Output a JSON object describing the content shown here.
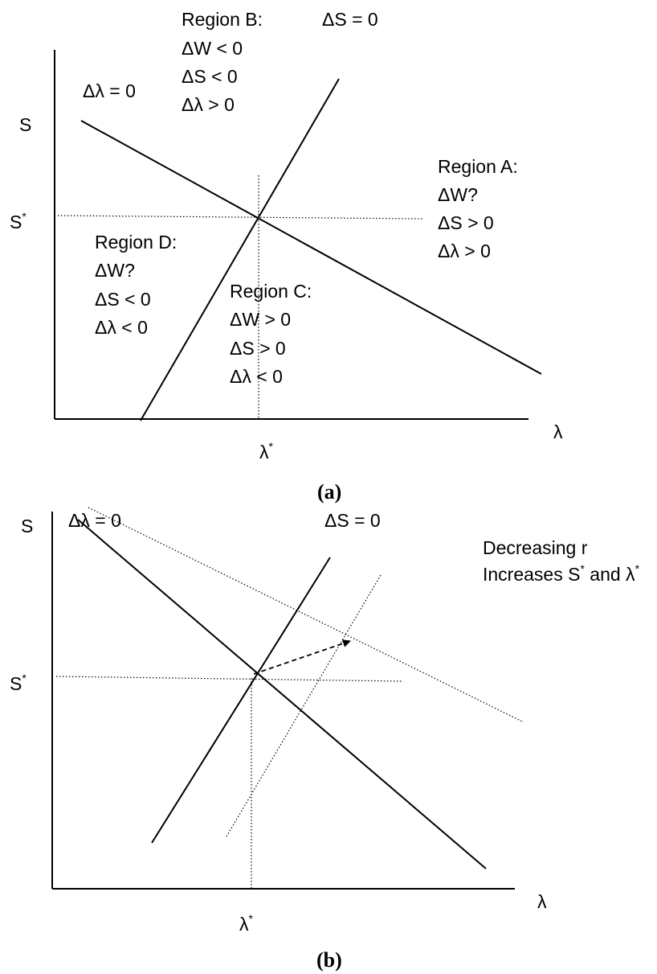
{
  "panel_a": {
    "axis_y": "S",
    "axis_x": "λ",
    "s_star": "S",
    "lambda_star": "λ",
    "star": "*",
    "dlambda_curve": "Δλ = 0",
    "ds_curve": "ΔS = 0",
    "region_b": [
      "Region B:",
      "ΔW < 0",
      "ΔS < 0",
      "Δλ > 0"
    ],
    "region_a": [
      "Region A:",
      "ΔW?",
      "ΔS > 0",
      "Δλ > 0"
    ],
    "region_d": [
      "Region D:",
      "ΔW?",
      "ΔS < 0",
      "Δλ < 0"
    ],
    "region_c": [
      "Region C:",
      "ΔW > 0",
      "ΔS > 0",
      "Δλ < 0"
    ],
    "caption": "a"
  },
  "panel_b": {
    "axis_y": "S",
    "axis_x": "λ",
    "s_star": "S",
    "lambda_star": "λ",
    "star": "*",
    "dlambda_curve": "Δλ = 0",
    "ds_curve": "ΔS = 0",
    "note_line1": "Decreasing r",
    "note_line2_a": "Increases S",
    "note_line2_b": " and λ",
    "caption": "b"
  }
}
